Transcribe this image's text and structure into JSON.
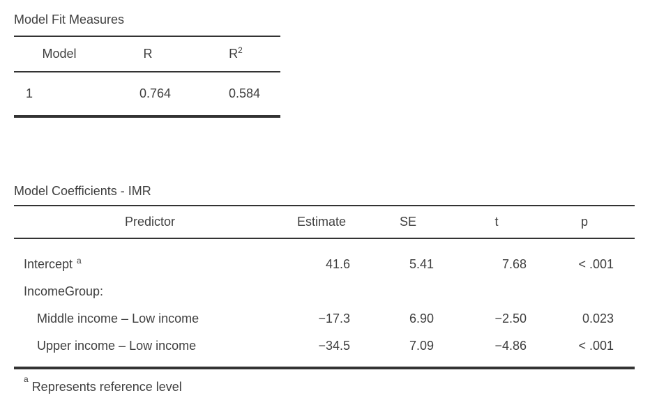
{
  "page": {
    "background": "#ffffff",
    "text_color": "#3f3f3f",
    "rule_color": "#333333"
  },
  "fit_table": {
    "title": "Model Fit Measures",
    "columns": {
      "model": "Model",
      "r": "R",
      "r2_base": "R",
      "r2_sup": "2"
    },
    "rows": [
      {
        "model": "1",
        "r": "0.764",
        "r2": "0.584"
      }
    ]
  },
  "coef_table": {
    "title": "Model Coefficients - IMR",
    "columns": [
      "Predictor",
      "Estimate",
      "SE",
      "t",
      "p"
    ],
    "rows": [
      {
        "predictor": "Intercept",
        "sup": "a",
        "estimate": "41.6",
        "se": "5.41",
        "t": "7.68",
        "p": "< .001",
        "indent": false
      },
      {
        "predictor": "IncomeGroup:",
        "sup": "",
        "estimate": "",
        "se": "",
        "t": "",
        "p": "",
        "indent": false
      },
      {
        "predictor": "Middle income – Low income",
        "sup": "",
        "estimate": "−17.3",
        "se": "6.90",
        "t": "−2.50",
        "p": "0.023",
        "indent": true
      },
      {
        "predictor": "Upper income – Low income",
        "sup": "",
        "estimate": "−34.5",
        "se": "7.09",
        "t": "−4.86",
        "p": "< .001",
        "indent": true
      }
    ],
    "footnote": {
      "marker": "a",
      "text": "Represents reference level"
    }
  }
}
